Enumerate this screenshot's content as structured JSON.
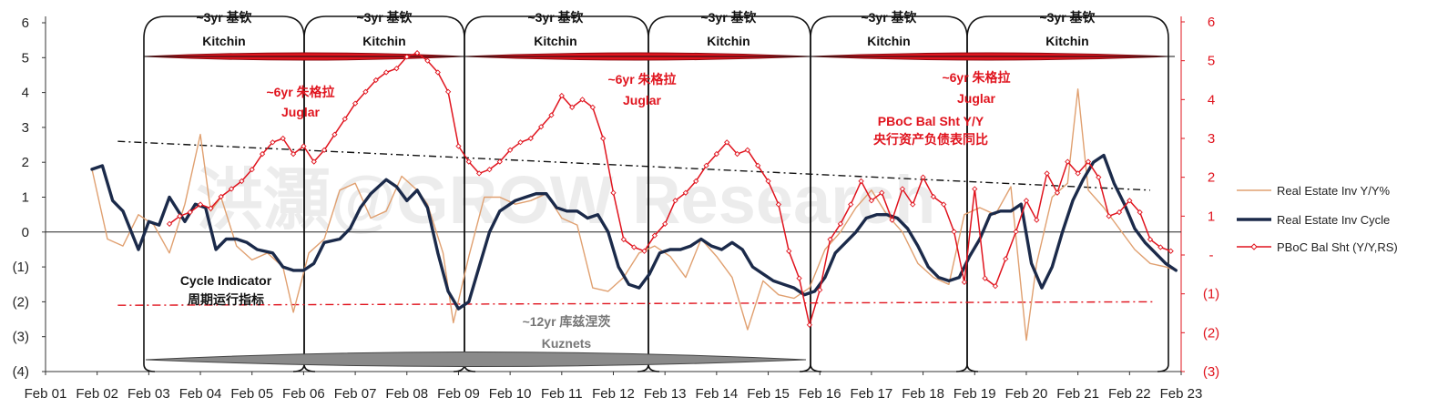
{
  "chart_data": {
    "type": "line",
    "title": "",
    "x_ticks": [
      "Feb 01",
      "Feb 02",
      "Feb 03",
      "Feb 04",
      "Feb 05",
      "Feb 06",
      "Feb 07",
      "Feb 08",
      "Feb 09",
      "Feb 10",
      "Feb 11",
      "Feb 12",
      "Feb 13",
      "Feb 14",
      "Feb 15",
      "Feb 16",
      "Feb 17",
      "Feb 18",
      "Feb 19",
      "Feb 20",
      "Feb 21",
      "Feb 22",
      "Feb 23"
    ],
    "y_left": {
      "ticks": [
        "6",
        "5",
        "4",
        "3",
        "2",
        "1",
        "0",
        "(1)",
        "(2)",
        "(3)",
        "(4)"
      ],
      "ylim": [
        -4,
        6
      ]
    },
    "y_right": {
      "ticks": [
        "6",
        "5",
        "4",
        "3",
        "2",
        "1",
        "-",
        "(1)",
        "(2)",
        "(3)"
      ],
      "ylim": [
        -3,
        6
      ],
      "color": "#e0141e"
    },
    "grid": false,
    "legend_position": "right",
    "legend": [
      "Real Estate Inv Y/Y%",
      "Real Estate Inv Cycle",
      "PBoC Bal Sht (Y/Y,RS)"
    ],
    "series": [
      {
        "name": "Real Estate Inv Y/Y%",
        "axis": "left",
        "color": "#e0a070",
        "x": [
          2002.0,
          2002.3,
          2002.6,
          2002.9,
          2003.2,
          2003.5,
          2003.8,
          2004.1,
          2004.3,
          2004.5,
          2004.8,
          2005.1,
          2005.4,
          2005.7,
          2005.9,
          2006.2,
          2006.5,
          2006.8,
          2007.1,
          2007.4,
          2007.7,
          2008.0,
          2008.3,
          2008.5,
          2008.8,
          2009.0,
          2009.3,
          2009.6,
          2009.9,
          2010.2,
          2010.5,
          2010.8,
          2011.1,
          2011.4,
          2011.7,
          2012.0,
          2012.3,
          2012.6,
          2012.9,
          2013.2,
          2013.5,
          2013.8,
          2014.1,
          2014.4,
          2014.7,
          2015.0,
          2015.3,
          2015.6,
          2015.9,
          2016.2,
          2016.5,
          2016.8,
          2017.1,
          2017.4,
          2017.7,
          2018.0,
          2018.3,
          2018.6,
          2018.9,
          2019.2,
          2019.5,
          2019.8,
          2020.1,
          2020.3,
          2020.6,
          2020.9,
          2021.1,
          2021.3,
          2021.6,
          2021.9,
          2022.2,
          2022.5,
          2022.8,
          2023.0
        ],
        "values": [
          1.8,
          -0.2,
          -0.4,
          0.5,
          0.2,
          -0.6,
          0.8,
          2.8,
          0.6,
          1.0,
          -0.4,
          -0.8,
          -0.6,
          -1.0,
          -2.3,
          -0.6,
          -0.2,
          1.2,
          1.4,
          0.4,
          0.6,
          1.6,
          1.2,
          0.8,
          -0.6,
          -2.6,
          -0.7,
          1.0,
          1.0,
          0.8,
          0.9,
          1.1,
          0.4,
          0.2,
          -1.6,
          -1.7,
          -1.3,
          -0.6,
          -0.4,
          -0.7,
          -1.3,
          -0.2,
          -0.7,
          -1.3,
          -2.8,
          -1.4,
          -1.8,
          -1.9,
          -1.6,
          -0.5,
          0.0,
          0.7,
          1.2,
          0.5,
          0.0,
          -0.9,
          -1.3,
          -1.5,
          0.5,
          0.7,
          0.5,
          1.3,
          -3.1,
          -0.9,
          1.0,
          1.4,
          4.1,
          1.2,
          0.7,
          0.1,
          -0.5,
          -0.9,
          -1.0,
          -1.1
        ]
      },
      {
        "name": "Real Estate Inv Cycle",
        "axis": "left",
        "color": "#1b2a4a",
        "x": [
          2002.0,
          2002.2,
          2002.4,
          2002.6,
          2002.9,
          2003.1,
          2003.3,
          2003.5,
          2003.8,
          2004.0,
          2004.2,
          2004.4,
          2004.6,
          2004.8,
          2005.0,
          2005.2,
          2005.5,
          2005.7,
          2005.9,
          2006.1,
          2006.3,
          2006.5,
          2006.8,
          2007.0,
          2007.2,
          2007.4,
          2007.7,
          2007.9,
          2008.1,
          2008.3,
          2008.5,
          2008.7,
          2008.9,
          2009.1,
          2009.3,
          2009.5,
          2009.7,
          2009.9,
          2010.2,
          2010.4,
          2010.6,
          2010.8,
          2011.0,
          2011.2,
          2011.4,
          2011.6,
          2011.8,
          2012.0,
          2012.2,
          2012.4,
          2012.6,
          2012.8,
          2013.0,
          2013.2,
          2013.4,
          2013.6,
          2013.8,
          2014.0,
          2014.2,
          2014.4,
          2014.6,
          2014.8,
          2015.0,
          2015.2,
          2015.4,
          2015.6,
          2015.8,
          2016.0,
          2016.2,
          2016.4,
          2016.6,
          2016.8,
          2017.0,
          2017.2,
          2017.4,
          2017.6,
          2017.8,
          2018.0,
          2018.2,
          2018.4,
          2018.6,
          2018.8,
          2019.0,
          2019.2,
          2019.4,
          2019.6,
          2019.8,
          2020.0,
          2020.2,
          2020.4,
          2020.6,
          2020.8,
          2021.0,
          2021.2,
          2021.4,
          2021.6,
          2021.8,
          2022.0,
          2022.2,
          2022.4,
          2022.6,
          2022.8,
          2023.0
        ],
        "values": [
          1.8,
          1.9,
          0.9,
          0.6,
          -0.5,
          0.3,
          0.2,
          1.0,
          0.3,
          0.8,
          0.7,
          -0.5,
          -0.2,
          -0.2,
          -0.3,
          -0.5,
          -0.6,
          -1.0,
          -1.1,
          -1.1,
          -0.9,
          -0.3,
          -0.2,
          0.1,
          0.7,
          1.1,
          1.5,
          1.3,
          0.9,
          1.2,
          0.7,
          -0.6,
          -1.7,
          -2.2,
          -2.0,
          -1.0,
          0.0,
          0.6,
          0.9,
          1.0,
          1.1,
          1.1,
          0.7,
          0.6,
          0.6,
          0.4,
          0.5,
          0.0,
          -1.0,
          -1.5,
          -1.6,
          -1.2,
          -0.6,
          -0.5,
          -0.5,
          -0.4,
          -0.2,
          -0.4,
          -0.5,
          -0.3,
          -0.5,
          -1.0,
          -1.2,
          -1.4,
          -1.5,
          -1.6,
          -1.8,
          -1.7,
          -1.3,
          -0.6,
          -0.3,
          0.0,
          0.4,
          0.5,
          0.5,
          0.4,
          0.1,
          -0.4,
          -1.0,
          -1.3,
          -1.4,
          -1.3,
          -0.7,
          -0.2,
          0.5,
          0.6,
          0.6,
          0.8,
          -0.9,
          -1.6,
          -1.0,
          0.0,
          0.9,
          1.5,
          2.0,
          2.2,
          1.4,
          0.8,
          0.1,
          -0.3,
          -0.6,
          -0.9,
          -1.1
        ]
      },
      {
        "name": "PBoC Bal Sht (Y/Y,RS)",
        "axis": "right",
        "color": "#e0141e",
        "x": [
          2003.5,
          2003.7,
          2003.9,
          2004.1,
          2004.3,
          2004.5,
          2004.7,
          2004.9,
          2005.1,
          2005.3,
          2005.5,
          2005.7,
          2005.9,
          2006.1,
          2006.3,
          2006.5,
          2006.7,
          2006.9,
          2007.1,
          2007.3,
          2007.5,
          2007.7,
          2007.9,
          2008.1,
          2008.3,
          2008.5,
          2008.7,
          2008.9,
          2009.1,
          2009.3,
          2009.5,
          2009.7,
          2009.9,
          2010.1,
          2010.3,
          2010.5,
          2010.7,
          2010.9,
          2011.1,
          2011.3,
          2011.5,
          2011.7,
          2011.9,
          2012.1,
          2012.3,
          2012.5,
          2012.7,
          2012.9,
          2013.1,
          2013.3,
          2013.5,
          2013.7,
          2013.9,
          2014.1,
          2014.3,
          2014.5,
          2014.7,
          2014.9,
          2015.1,
          2015.3,
          2015.5,
          2015.7,
          2015.9,
          2016.1,
          2016.3,
          2016.5,
          2016.7,
          2016.9,
          2017.1,
          2017.3,
          2017.5,
          2017.7,
          2017.9,
          2018.1,
          2018.3,
          2018.5,
          2018.7,
          2018.9,
          2019.1,
          2019.3,
          2019.5,
          2019.7,
          2019.9,
          2020.1,
          2020.3,
          2020.5,
          2020.7,
          2020.9,
          2021.1,
          2021.3,
          2021.5,
          2021.7,
          2021.9,
          2022.1,
          2022.3,
          2022.5,
          2022.7,
          2022.9
        ],
        "values": [
          0.8,
          1.0,
          1.1,
          1.3,
          1.2,
          1.5,
          1.7,
          1.9,
          2.2,
          2.6,
          2.9,
          3.0,
          2.6,
          2.8,
          2.4,
          2.7,
          3.1,
          3.5,
          3.9,
          4.2,
          4.5,
          4.7,
          4.8,
          5.1,
          5.2,
          5.0,
          4.7,
          4.2,
          2.8,
          2.4,
          2.1,
          2.2,
          2.4,
          2.7,
          2.9,
          3.0,
          3.3,
          3.6,
          4.1,
          3.8,
          4.0,
          3.8,
          3.0,
          1.6,
          0.4,
          0.2,
          0.1,
          0.5,
          0.8,
          1.4,
          1.6,
          1.9,
          2.3,
          2.6,
          2.9,
          2.6,
          2.7,
          2.3,
          1.9,
          1.3,
          0.1,
          -0.6,
          -1.8,
          -0.9,
          0.4,
          0.8,
          1.3,
          1.9,
          1.4,
          1.6,
          0.9,
          1.7,
          1.3,
          2.0,
          1.5,
          1.3,
          0.6,
          -0.7,
          1.7,
          -0.6,
          -0.8,
          -0.1,
          0.6,
          1.4,
          0.9,
          2.1,
          1.6,
          2.4,
          2.1,
          2.4,
          2.0,
          1.0,
          1.1,
          1.4,
          1.1,
          0.4,
          0.2,
          0.1
        ]
      }
    ],
    "annotations": {
      "kitchin_top": "~3yr 基钦",
      "kitchin_bottom": "Kitchin",
      "juglar_top": "~6yr 朱格拉",
      "juglar_bottom": "Juglar",
      "pboc_en": "PBoC Bal Sht Y/Y",
      "pboc_cn": "央行资产负债表同比",
      "cycle_en": "Cycle Indicator",
      "cycle_cn": "周期运行指标",
      "kuznets_top": "~12yr 库兹涅茨",
      "kuznets_bottom": "Kuznets",
      "watermark": "洪灝@GROW Research"
    }
  }
}
